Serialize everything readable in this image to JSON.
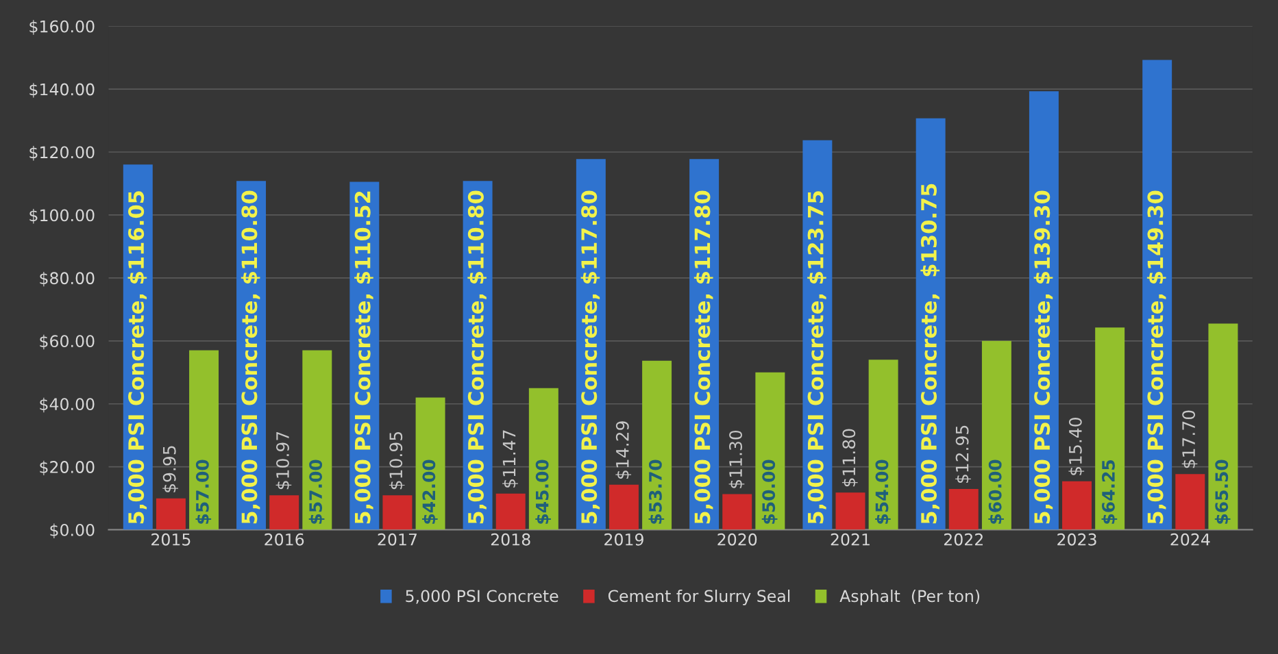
{
  "chart_data": {
    "type": "bar",
    "categories": [
      "2015",
      "2016",
      "2017",
      "2018",
      "2019",
      "2020",
      "2021",
      "2022",
      "2023",
      "2024"
    ],
    "series": [
      {
        "name": "5,000 PSI Concrete",
        "color": "#2f73cf",
        "values": [
          116.05,
          110.8,
          110.52,
          110.8,
          117.8,
          117.8,
          123.75,
          130.75,
          139.3,
          149.3
        ],
        "value_labels": [
          "5,000 PSI Concrete, $116.05",
          "5,000 PSI Concrete, $110.80",
          "5,000 PSI Concrete, $110.52",
          "5,000 PSI Concrete, $110.80",
          "5,000 PSI Concrete, $117.80",
          "5,000 PSI Concrete, $117.80",
          "5,000 PSI Concrete, $123.75",
          "5,000 PSI Concrete,  $130.75",
          "5,000 PSI Concrete, $139.30",
          "5,000 PSI Concrete, $149.30"
        ]
      },
      {
        "name": "Cement for Slurry Seal",
        "color": "#d02a2a",
        "values": [
          9.95,
          10.97,
          10.95,
          11.47,
          14.29,
          11.3,
          11.8,
          12.95,
          15.4,
          17.7
        ],
        "value_labels": [
          "$9.95",
          "$10.97",
          "$10.95",
          "$11.47",
          "$14.29",
          "$11.30",
          "$11.80",
          "$12.95",
          "$15.40",
          "$17.70"
        ]
      },
      {
        "name": "Asphalt  (Per ton)",
        "color": "#93c02c",
        "values": [
          57.0,
          57.0,
          42.0,
          45.0,
          53.7,
          50.0,
          54.0,
          60.0,
          64.25,
          65.5
        ],
        "value_labels": [
          "$57.00",
          "$57.00",
          "$42.00",
          "$45.00",
          "$53.70",
          "$50.00",
          "$54.00",
          "$60.00",
          "$64.25",
          "$65.50"
        ]
      }
    ],
    "ylim": [
      0,
      160
    ],
    "yticks": [
      {
        "value": 0,
        "label": "$0.00"
      },
      {
        "value": 20,
        "label": "$20.00"
      },
      {
        "value": 40,
        "label": "$40.00"
      },
      {
        "value": 60,
        "label": "$60.00"
      },
      {
        "value": 80,
        "label": "$80.00"
      },
      {
        "value": 100,
        "label": "$100.00"
      },
      {
        "value": 120,
        "label": "$120.00"
      },
      {
        "value": 140,
        "label": "$140.00"
      },
      {
        "value": 160,
        "label": "$160.00"
      }
    ],
    "grid": "y",
    "legend": "bottom"
  }
}
